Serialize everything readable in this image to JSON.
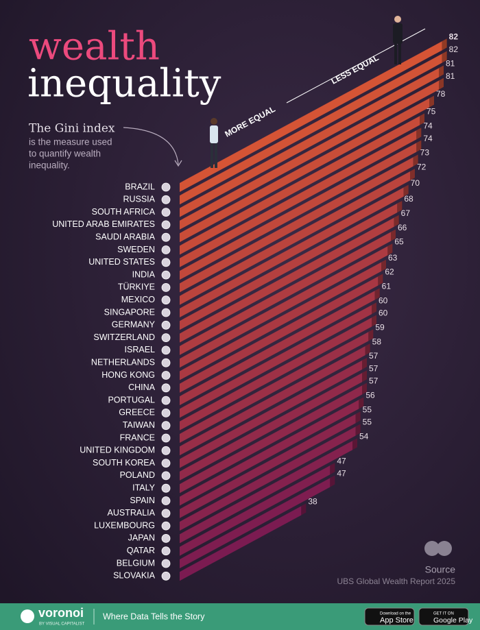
{
  "header": {
    "title_line1": "wealth",
    "title_line2": "inequality",
    "intro_title": "The Gini index",
    "intro_text": [
      "is the measure used",
      "to quantify wealth",
      "inequality."
    ]
  },
  "chart_data": {
    "type": "slanted-bar",
    "categories": [
      "BRAZIL",
      "RUSSIA",
      "SOUTH AFRICA",
      "UNITED ARAB EMIRATES",
      "SAUDI ARABIA",
      "SWEDEN",
      "UNITED STATES",
      "INDIA",
      "TÜRKIYE",
      "MEXICO",
      "SINGAPORE",
      "GERMANY",
      "SWITZERLAND",
      "ISRAEL",
      "NETHERLANDS",
      "HONG KONG",
      "CHINA",
      "PORTUGAL",
      "GREECE",
      "TAIWAN",
      "FRANCE",
      "UNITED KINGDOM",
      "SOUTH KOREA",
      "POLAND",
      "ITALY",
      "SPAIN",
      "AUSTRALIA",
      "LUXEMBOURG",
      "JAPAN",
      "QATAR",
      "BELGIUM",
      "SLOVAKIA"
    ],
    "values": [
      82,
      82,
      81,
      81,
      78,
      75,
      74,
      74,
      73,
      72,
      70,
      68,
      67,
      66,
      65,
      63,
      62,
      61,
      60,
      60,
      59,
      58,
      57,
      57,
      57,
      56,
      55,
      55,
      54,
      47,
      47,
      38
    ],
    "xlim": [
      0,
      84
    ],
    "colors": [
      "#f2603c",
      "#8c1f5c"
    ],
    "annotations": {
      "low": "MORE EQUAL",
      "high": "LESS EQUAL"
    }
  },
  "source": {
    "label": "Source",
    "text": "UBS Global Wealth Report 2025"
  },
  "footer": {
    "brand": "voronoi",
    "brand_sub": "BY VISUAL CAPITALIST",
    "tagline": "Where Data Tells the Story",
    "appstore_small": "Download on the",
    "appstore": "App Store",
    "googleplay_small": "GET IT ON",
    "googleplay": "Google Play"
  }
}
